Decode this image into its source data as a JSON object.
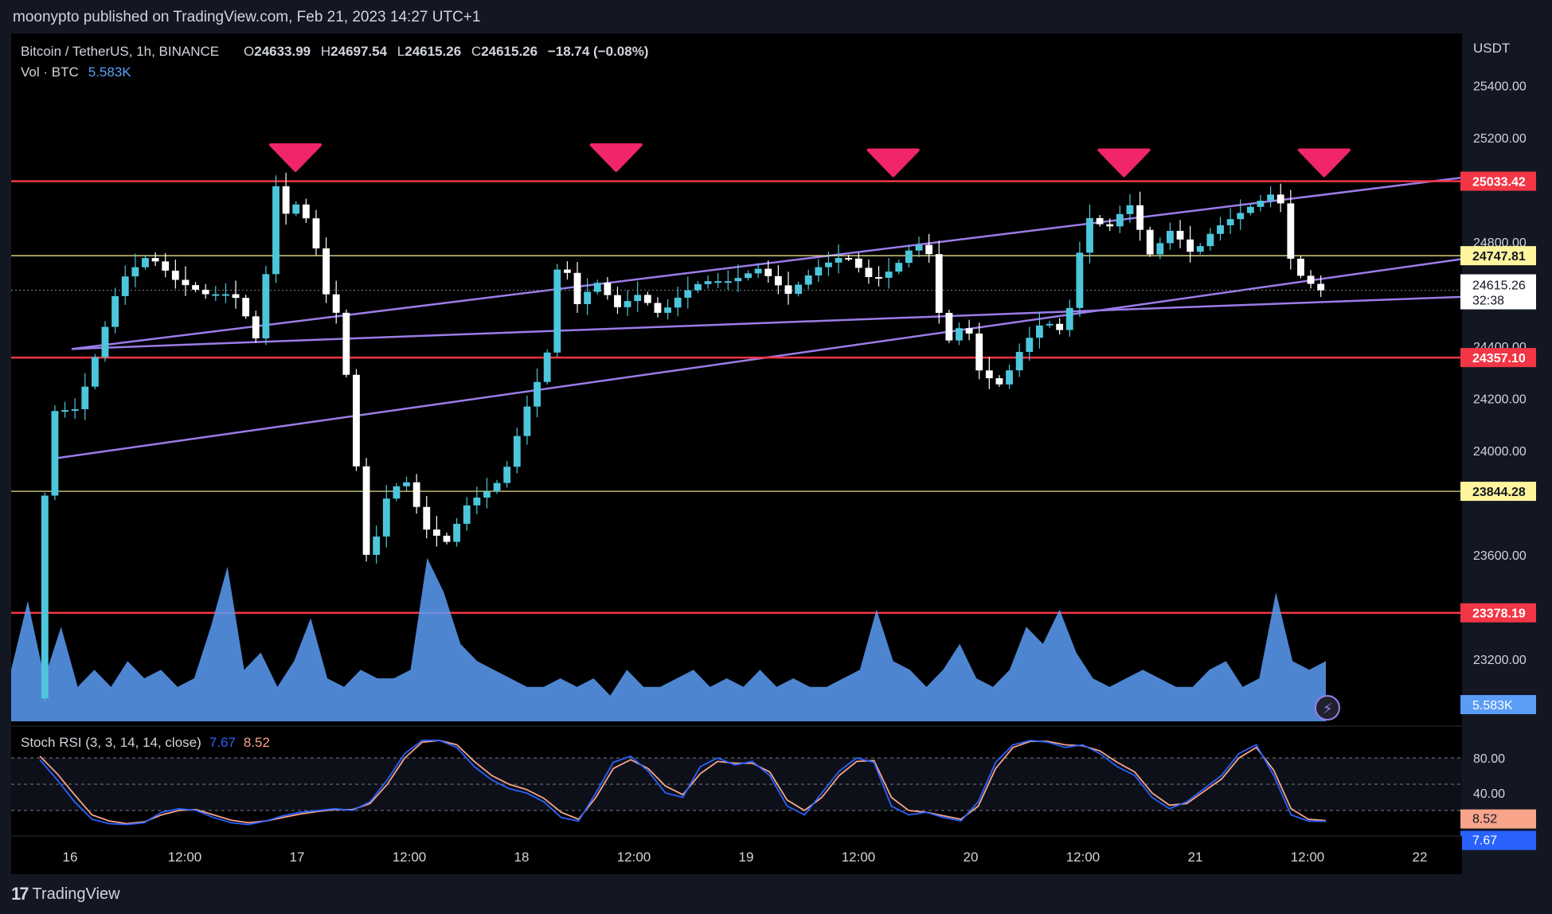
{
  "header": {
    "published": "moonypto published on TradingView.com, Feb 21, 2023 14:27 UTC+1"
  },
  "legend": {
    "symbol": "Bitcoin / TetherUS, 1h, BINANCE",
    "o_label": "O",
    "o_value": "24633.99",
    "h_label": "H",
    "h_value": "24697.54",
    "l_label": "L",
    "l_value": "24615.26",
    "c_label": "C",
    "c_value": "24615.26",
    "change": "−18.74 (−0.08%)",
    "vol_label": "Vol · BTC",
    "vol_value": "5.583K"
  },
  "stoch": {
    "label": "Stoch RSI (3, 3, 14, 14, close)",
    "k_value": "7.67",
    "d_value": "8.52"
  },
  "currency": "USDT",
  "footer": {
    "logo_text": "TradingView"
  },
  "colors": {
    "bg": "#000000",
    "up": "#4dc6db",
    "down": "#ffffff",
    "level_red": "#f23645",
    "level_yellow": "#fff59d",
    "channel": "#9c7ce8",
    "marker": "#f0256b",
    "volume": "#5b9cf6",
    "stoch_k": "#2962ff",
    "stoch_d": "#f7a48b"
  },
  "chart_data": {
    "type": "candlestick",
    "title": "Bitcoin / TetherUS, 1h, BINANCE",
    "ylabel": "USDT",
    "ylim": [
      22950,
      25600
    ],
    "y_ticks": [
      "25400.00",
      "25200.00",
      "24800.00",
      "24400.00",
      "24200.00",
      "24000.00",
      "23600.00",
      "23200.00"
    ],
    "x_ticks": [
      "16",
      "12:00",
      "17",
      "12:00",
      "18",
      "12:00",
      "19",
      "12:00",
      "20",
      "12:00",
      "21",
      "12:00",
      "22"
    ],
    "horizontal_levels": [
      {
        "value": 25033.42,
        "label": "25033.42",
        "kind": "resistance"
      },
      {
        "value": 24747.81,
        "label": "24747.81",
        "kind": "pivot"
      },
      {
        "value": 24357.1,
        "label": "24357.10",
        "kind": "support"
      },
      {
        "value": 23844.28,
        "label": "23844.28",
        "kind": "pivot"
      },
      {
        "value": 23378.19,
        "label": "23378.19",
        "kind": "support"
      }
    ],
    "current_price": {
      "value": "24615.26",
      "countdown": "32:38"
    },
    "channel_lines": [
      {
        "from": [
          0.0,
          24390
        ],
        "to": [
          1.0,
          25047
        ]
      },
      {
        "from": [
          0.0,
          23970
        ],
        "to": [
          1.0,
          24735
        ]
      },
      {
        "from": [
          0.0,
          24390
        ],
        "to": [
          1.0,
          24590
        ]
      }
    ],
    "top_markers": [
      {
        "t": 0.196,
        "price": 25130
      },
      {
        "t": 0.417,
        "price": 25130
      },
      {
        "t": 0.608,
        "price": 25110
      },
      {
        "t": 0.767,
        "price": 25110
      },
      {
        "t": 0.905,
        "price": 25110
      }
    ],
    "series": [
      {
        "name": "price_path",
        "points": [
          [
            0.0,
            23050
          ],
          [
            0.01,
            24150
          ],
          [
            0.03,
            24160
          ],
          [
            0.045,
            24400
          ],
          [
            0.06,
            24650
          ],
          [
            0.08,
            24750
          ],
          [
            0.1,
            24650
          ],
          [
            0.12,
            24600
          ],
          [
            0.14,
            24600
          ],
          [
            0.15,
            24500
          ],
          [
            0.158,
            24400
          ],
          [
            0.163,
            24700
          ],
          [
            0.168,
            25050
          ],
          [
            0.175,
            24900
          ],
          [
            0.185,
            24950
          ],
          [
            0.195,
            24850
          ],
          [
            0.205,
            24600
          ],
          [
            0.215,
            24500
          ],
          [
            0.225,
            24000
          ],
          [
            0.235,
            23520
          ],
          [
            0.245,
            23800
          ],
          [
            0.26,
            23900
          ],
          [
            0.275,
            23700
          ],
          [
            0.29,
            23650
          ],
          [
            0.305,
            23800
          ],
          [
            0.32,
            23850
          ],
          [
            0.33,
            23900
          ],
          [
            0.345,
            24150
          ],
          [
            0.36,
            24350
          ],
          [
            0.37,
            24800
          ],
          [
            0.38,
            24550
          ],
          [
            0.395,
            24650
          ],
          [
            0.41,
            24550
          ],
          [
            0.425,
            24600
          ],
          [
            0.44,
            24520
          ],
          [
            0.455,
            24600
          ],
          [
            0.47,
            24650
          ],
          [
            0.49,
            24650
          ],
          [
            0.51,
            24700
          ],
          [
            0.53,
            24600
          ],
          [
            0.55,
            24700
          ],
          [
            0.57,
            24750
          ],
          [
            0.59,
            24650
          ],
          [
            0.605,
            24700
          ],
          [
            0.62,
            24800
          ],
          [
            0.63,
            24750
          ],
          [
            0.64,
            24400
          ],
          [
            0.655,
            24500
          ],
          [
            0.665,
            24300
          ],
          [
            0.68,
            24250
          ],
          [
            0.695,
            24400
          ],
          [
            0.71,
            24500
          ],
          [
            0.725,
            24450
          ],
          [
            0.74,
            24900
          ],
          [
            0.755,
            24850
          ],
          [
            0.77,
            24950
          ],
          [
            0.785,
            24750
          ],
          [
            0.8,
            24850
          ],
          [
            0.815,
            24750
          ],
          [
            0.83,
            24850
          ],
          [
            0.845,
            24900
          ],
          [
            0.86,
            24950
          ],
          [
            0.875,
            25000
          ],
          [
            0.885,
            24700
          ],
          [
            0.895,
            24650
          ],
          [
            0.905,
            24615
          ]
        ]
      },
      {
        "name": "Volume",
        "values": [
          0.3,
          0.7,
          0.25,
          0.55,
          0.2,
          0.3,
          0.2,
          0.35,
          0.25,
          0.3,
          0.2,
          0.25,
          0.55,
          0.9,
          0.3,
          0.4,
          0.2,
          0.35,
          0.6,
          0.25,
          0.2,
          0.3,
          0.25,
          0.25,
          0.3,
          0.95,
          0.75,
          0.45,
          0.35,
          0.3,
          0.25,
          0.2,
          0.2,
          0.25,
          0.2,
          0.25,
          0.15,
          0.3,
          0.2,
          0.2,
          0.25,
          0.3,
          0.2,
          0.25,
          0.2,
          0.3,
          0.2,
          0.25,
          0.2,
          0.2,
          0.25,
          0.3,
          0.65,
          0.35,
          0.3,
          0.2,
          0.3,
          0.45,
          0.25,
          0.2,
          0.3,
          0.55,
          0.45,
          0.65,
          0.4,
          0.25,
          0.2,
          0.25,
          0.3,
          0.25,
          0.2,
          0.2,
          0.3,
          0.35,
          0.2,
          0.25,
          0.75,
          0.35,
          0.3,
          0.35
        ]
      },
      {
        "name": "Stoch K",
        "values": [
          78,
          55,
          30,
          10,
          5,
          4,
          6,
          18,
          22,
          20,
          12,
          6,
          4,
          8,
          14,
          18,
          20,
          22,
          20,
          30,
          55,
          85,
          100,
          100,
          92,
          70,
          55,
          45,
          40,
          30,
          12,
          8,
          40,
          75,
          82,
          65,
          40,
          35,
          70,
          80,
          72,
          76,
          60,
          25,
          15,
          40,
          65,
          80,
          75,
          25,
          15,
          18,
          12,
          8,
          30,
          75,
          95,
          100,
          98,
          92,
          95,
          85,
          70,
          60,
          35,
          22,
          30,
          45,
          60,
          85,
          95,
          60,
          15,
          8,
          7.67
        ]
      },
      {
        "name": "Stoch D",
        "values": [
          82,
          62,
          38,
          15,
          8,
          5,
          7,
          15,
          20,
          21,
          15,
          9,
          6,
          8,
          12,
          16,
          19,
          21,
          21,
          28,
          50,
          80,
          98,
          100,
          95,
          76,
          60,
          50,
          44,
          34,
          18,
          10,
          35,
          68,
          78,
          68,
          48,
          38,
          62,
          76,
          74,
          74,
          64,
          32,
          20,
          35,
          60,
          76,
          77,
          35,
          20,
          18,
          14,
          10,
          25,
          68,
          92,
          99,
          99,
          95,
          94,
          88,
          75,
          64,
          40,
          26,
          28,
          42,
          56,
          80,
          92,
          66,
          22,
          10,
          8.52
        ]
      }
    ],
    "stoch_range": [
      0,
      100
    ],
    "stoch_ticks": [
      "80.00",
      "40.00"
    ]
  }
}
